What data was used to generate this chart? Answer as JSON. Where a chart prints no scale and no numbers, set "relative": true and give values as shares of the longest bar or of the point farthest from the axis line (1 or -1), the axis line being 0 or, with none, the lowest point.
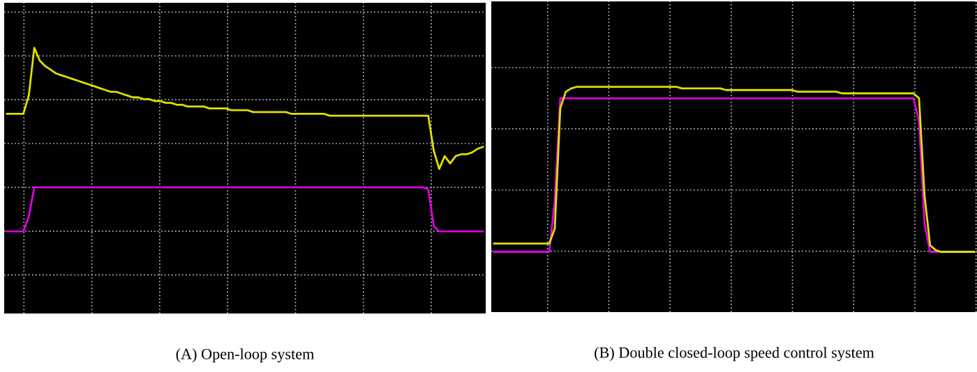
{
  "chart_data": [
    {
      "type": "line",
      "relative": true,
      "grid": true,
      "xlabel": "(A) Open-loop system",
      "categories": [
        null,
        null,
        null,
        null,
        null,
        null,
        null,
        null,
        null,
        null,
        null,
        null,
        null,
        null,
        null,
        null,
        null,
        null,
        null,
        null,
        null,
        null,
        null,
        null,
        null,
        null,
        null,
        null,
        null,
        null,
        null,
        null,
        null,
        null,
        null,
        null,
        null,
        null,
        null,
        null,
        null,
        null,
        null,
        null,
        null,
        null,
        null,
        null,
        null,
        null,
        null,
        null,
        null,
        null,
        null,
        null,
        null,
        null,
        null,
        null,
        null,
        null,
        null,
        null,
        null,
        null,
        null,
        null,
        null,
        null,
        null,
        null,
        null,
        null,
        null,
        null,
        null,
        null,
        null,
        null,
        null,
        null,
        null,
        null,
        null,
        null,
        null,
        null
      ],
      "series": [
        {
          "color": "#e0e000",
          "values": [
            0.64,
            0.64,
            0.64,
            0.64,
            0.74,
            1.0,
            0.93,
            0.9,
            0.88,
            0.86,
            0.85,
            0.84,
            0.83,
            0.82,
            0.81,
            0.8,
            0.79,
            0.78,
            0.77,
            0.76,
            0.76,
            0.75,
            0.74,
            0.73,
            0.73,
            0.72,
            0.72,
            0.71,
            0.71,
            0.7,
            0.7,
            0.69,
            0.69,
            0.68,
            0.68,
            0.68,
            0.68,
            0.67,
            0.67,
            0.67,
            0.67,
            0.66,
            0.66,
            0.66,
            0.66,
            0.65,
            0.65,
            0.65,
            0.65,
            0.65,
            0.65,
            0.65,
            0.64,
            0.64,
            0.64,
            0.64,
            0.64,
            0.64,
            0.64,
            0.63,
            0.63,
            0.63,
            0.63,
            0.63,
            0.63,
            0.63,
            0.63,
            0.63,
            0.63,
            0.63,
            0.63,
            0.63,
            0.63,
            0.63,
            0.63,
            0.63,
            0.63,
            0.63,
            0.44,
            0.34,
            0.41,
            0.37,
            0.41,
            0.42,
            0.42,
            0.43,
            0.45,
            0.46
          ]
        },
        {
          "color": "#e000e0",
          "values": [
            0,
            0,
            0,
            0,
            0.08,
            0.24,
            0.24,
            0.24,
            0.24,
            0.24,
            0.24,
            0.24,
            0.24,
            0.24,
            0.24,
            0.24,
            0.24,
            0.24,
            0.24,
            0.24,
            0.24,
            0.24,
            0.24,
            0.24,
            0.24,
            0.24,
            0.24,
            0.24,
            0.24,
            0.24,
            0.24,
            0.24,
            0.24,
            0.24,
            0.24,
            0.24,
            0.24,
            0.24,
            0.24,
            0.24,
            0.24,
            0.24,
            0.24,
            0.24,
            0.24,
            0.24,
            0.24,
            0.24,
            0.24,
            0.24,
            0.24,
            0.24,
            0.24,
            0.24,
            0.24,
            0.24,
            0.24,
            0.24,
            0.24,
            0.24,
            0.24,
            0.24,
            0.24,
            0.24,
            0.24,
            0.24,
            0.24,
            0.24,
            0.24,
            0.24,
            0.24,
            0.24,
            0.24,
            0.24,
            0.24,
            0.24,
            0.24,
            0.23,
            0.03,
            0,
            0,
            0,
            0,
            0,
            0,
            0,
            0,
            0
          ]
        }
      ]
    },
    {
      "type": "line",
      "relative": true,
      "grid": true,
      "xlabel": "(B) Double closed-loop speed control system",
      "categories": [
        null,
        null,
        null,
        null,
        null,
        null,
        null,
        null,
        null,
        null,
        null,
        null,
        null,
        null,
        null,
        null,
        null,
        null,
        null,
        null,
        null,
        null,
        null,
        null,
        null,
        null,
        null,
        null,
        null,
        null,
        null,
        null,
        null,
        null,
        null,
        null,
        null,
        null,
        null,
        null,
        null,
        null,
        null,
        null,
        null,
        null,
        null,
        null,
        null,
        null,
        null,
        null,
        null,
        null,
        null,
        null,
        null,
        null,
        null,
        null,
        null,
        null,
        null,
        null,
        null,
        null,
        null,
        null,
        null,
        null,
        null,
        null,
        null,
        null,
        null,
        null,
        null,
        null,
        null,
        null,
        null,
        null,
        null,
        null,
        null,
        null,
        null,
        null
      ],
      "series": [
        {
          "color": "#e000e0",
          "values": [
            0,
            0,
            0,
            0,
            0,
            0,
            0,
            0,
            0,
            0,
            0,
            0.31,
            0.93,
            0.93,
            0.93,
            0.93,
            0.93,
            0.93,
            0.93,
            0.93,
            0.93,
            0.93,
            0.93,
            0.93,
            0.93,
            0.93,
            0.93,
            0.93,
            0.93,
            0.93,
            0.93,
            0.93,
            0.93,
            0.93,
            0.93,
            0.93,
            0.93,
            0.93,
            0.93,
            0.93,
            0.93,
            0.93,
            0.93,
            0.93,
            0.93,
            0.93,
            0.93,
            0.93,
            0.93,
            0.93,
            0.93,
            0.93,
            0.93,
            0.93,
            0.93,
            0.93,
            0.93,
            0.93,
            0.93,
            0.93,
            0.93,
            0.93,
            0.93,
            0.93,
            0.93,
            0.93,
            0.93,
            0.93,
            0.93,
            0.93,
            0.93,
            0.93,
            0.93,
            0.93,
            0.93,
            0.93,
            0.93,
            0.79,
            0.17,
            0,
            0,
            0,
            0,
            null,
            null,
            null,
            null,
            null
          ]
        },
        {
          "color": "#e0e000",
          "values": [
            0.05,
            0.05,
            0.05,
            0.05,
            0.05,
            0.05,
            0.05,
            0.05,
            0.05,
            0.05,
            0.05,
            0.14,
            0.87,
            0.97,
            0.99,
            1.0,
            1.0,
            1.0,
            1.0,
            1.0,
            1.0,
            1.0,
            1.0,
            1.0,
            1.0,
            1.0,
            1.0,
            1.0,
            1.0,
            1.0,
            1.0,
            1.0,
            1.0,
            1.0,
            0.99,
            0.99,
            0.99,
            0.99,
            0.99,
            0.99,
            0.99,
            0.99,
            0.98,
            0.98,
            0.98,
            0.98,
            0.98,
            0.98,
            0.98,
            0.98,
            0.98,
            0.98,
            0.98,
            0.98,
            0.98,
            0.97,
            0.97,
            0.97,
            0.97,
            0.97,
            0.97,
            0.97,
            0.97,
            0.96,
            0.96,
            0.96,
            0.96,
            0.96,
            0.96,
            0.96,
            0.96,
            0.96,
            0.96,
            0.96,
            0.96,
            0.96,
            0.96,
            0.93,
            0.34,
            0.04,
            0.01,
            0,
            0,
            0,
            0,
            0,
            0,
            0
          ]
        }
      ]
    }
  ]
}
